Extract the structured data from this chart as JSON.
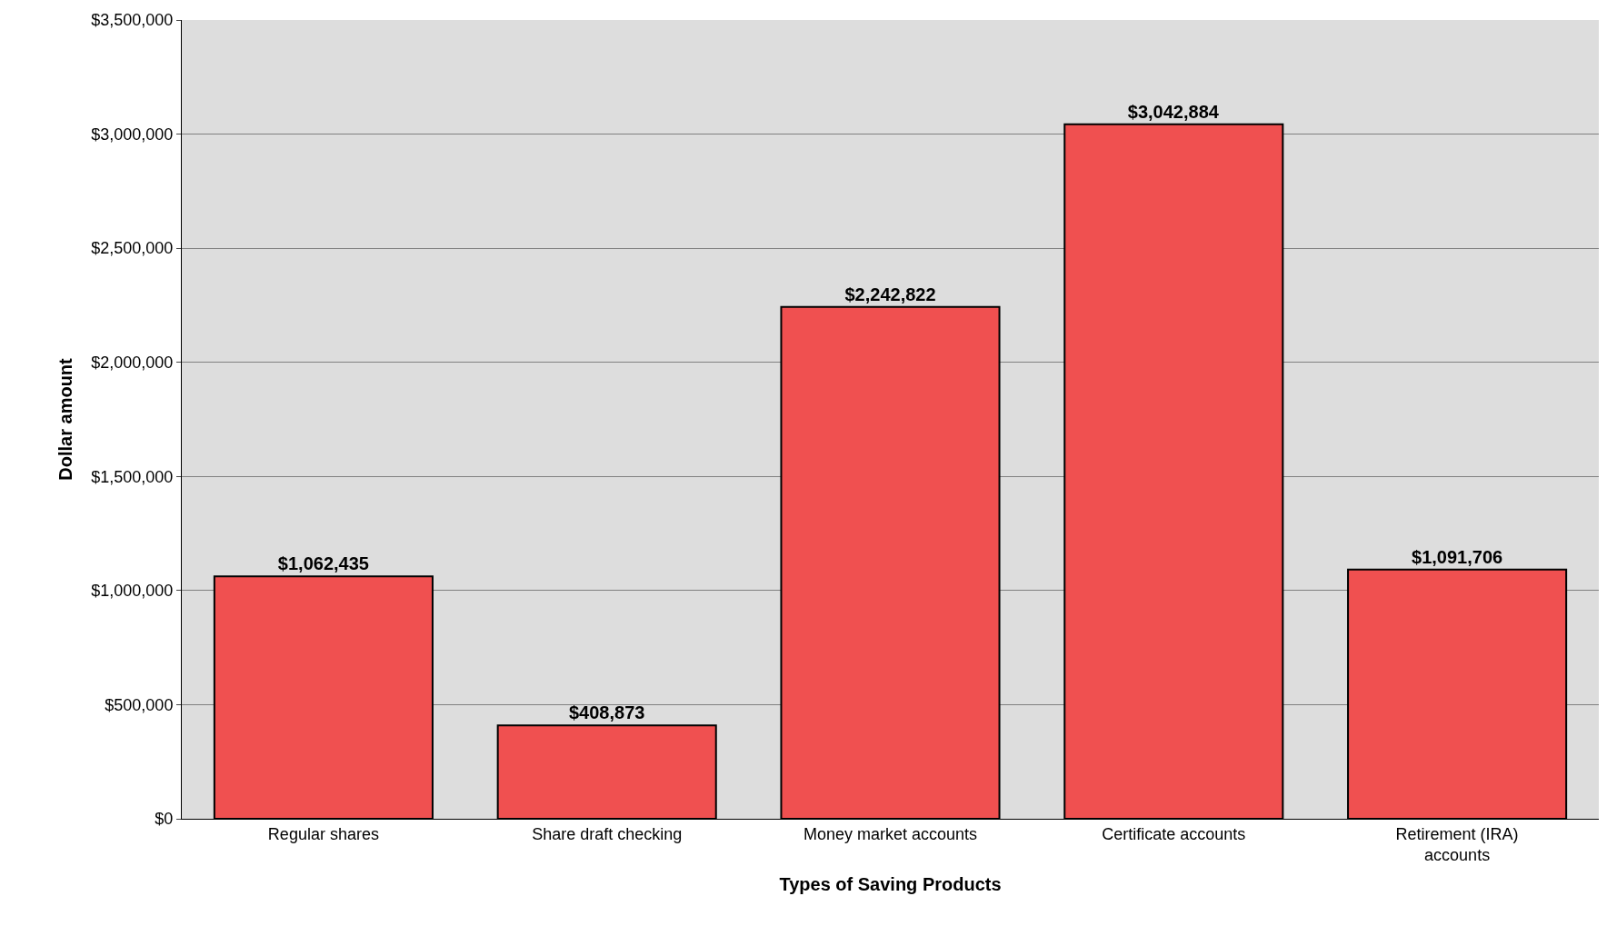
{
  "chart_data": {
    "type": "bar",
    "xlabel": "Types of Saving Products",
    "ylabel": "Dollar amount",
    "categories": [
      "Regular shares",
      "Share draft checking",
      "Money market accounts",
      "Certificate accounts",
      "Retirement (IRA) accounts"
    ],
    "values": [
      1062435,
      408873,
      2242822,
      3042884,
      1091706
    ],
    "value_labels": [
      "$1,062,435",
      "$408,873",
      "$2,242,822",
      "$3,042,884",
      "$1,091,706"
    ],
    "color": "#f05050",
    "ylim": [
      0,
      3500000
    ],
    "yticks": [
      {
        "value": 0,
        "label": "$0"
      },
      {
        "value": 500000,
        "label": "$500,000"
      },
      {
        "value": 1000000,
        "label": "$1,000,000"
      },
      {
        "value": 1500000,
        "label": "$1,500,000"
      },
      {
        "value": 2000000,
        "label": "$2,000,000"
      },
      {
        "value": 2500000,
        "label": "$2,500,000"
      },
      {
        "value": 3000000,
        "label": "$3,000,000"
      },
      {
        "value": 3500000,
        "label": "$3,500,000"
      }
    ],
    "grid": "y"
  }
}
